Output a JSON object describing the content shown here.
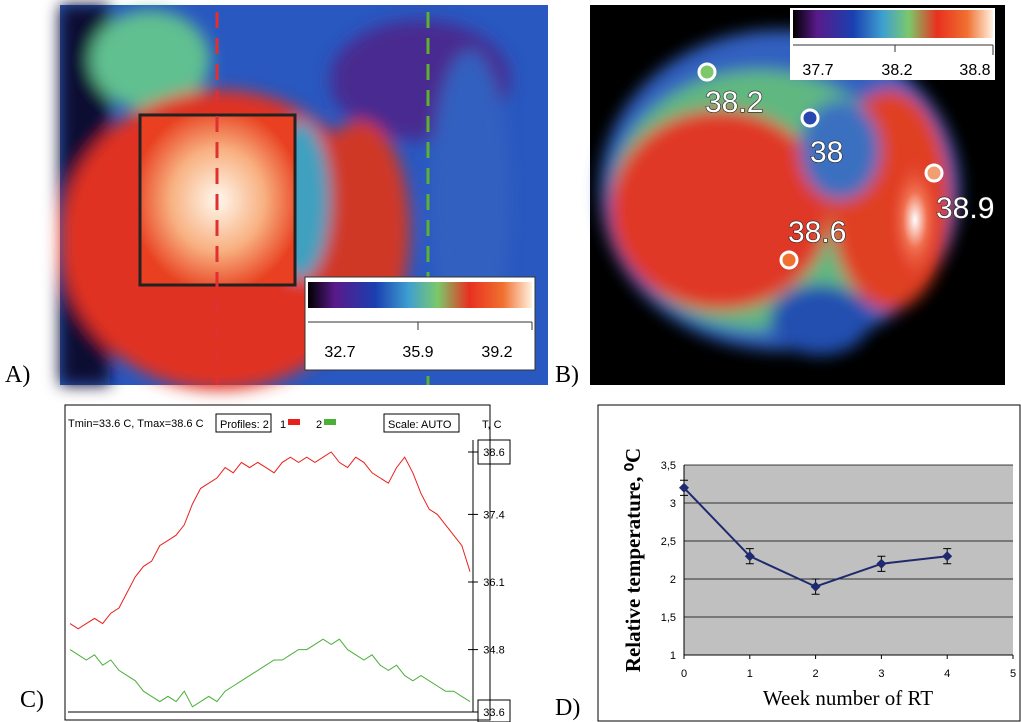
{
  "panel_labels": [
    "A)",
    "B)",
    "C)",
    "D)"
  ],
  "image_a": {
    "scale_labels": [
      "32.7",
      "35.9",
      "39.2"
    ]
  },
  "image_b": {
    "scale_labels": [
      "37.7",
      "38.2",
      "38.8"
    ],
    "point_labels": [
      "38.2",
      "38",
      "38.6",
      "38.9"
    ]
  },
  "chart_data": [
    {
      "type": "line",
      "title": "Tmin=33.6 C,  Tmax=38.6 C",
      "profiles_label": "Profiles: 2",
      "scale_label": "Scale: AUTO",
      "y_label": "T, C",
      "ylim": [
        33.6,
        38.6
      ],
      "yticks": [
        38.6,
        37.4,
        36.1,
        34.8,
        33.6
      ],
      "grid": false,
      "series": [
        {
          "name": "1",
          "color": "#e8201c",
          "values": [
            35.3,
            35.2,
            35.3,
            35.4,
            35.3,
            35.5,
            35.6,
            35.9,
            36.2,
            36.4,
            36.5,
            36.8,
            36.9,
            37.0,
            37.2,
            37.6,
            37.9,
            38.0,
            38.1,
            38.3,
            38.2,
            38.4,
            38.3,
            38.4,
            38.3,
            38.2,
            38.4,
            38.5,
            38.4,
            38.5,
            38.4,
            38.5,
            38.6,
            38.4,
            38.3,
            38.5,
            38.4,
            38.2,
            38.1,
            38.0,
            38.3,
            38.5,
            38.2,
            37.8,
            37.5,
            37.4,
            37.2,
            37.0,
            36.8,
            36.3
          ]
        },
        {
          "name": "2",
          "color": "#4caf3a",
          "values": [
            34.8,
            34.7,
            34.6,
            34.7,
            34.5,
            34.6,
            34.4,
            34.3,
            34.2,
            34.0,
            33.9,
            33.8,
            33.9,
            33.8,
            34.0,
            33.7,
            33.8,
            33.9,
            33.8,
            34.0,
            34.1,
            34.2,
            34.3,
            34.4,
            34.5,
            34.6,
            34.6,
            34.7,
            34.8,
            34.8,
            34.9,
            35.0,
            34.9,
            35.0,
            34.8,
            34.7,
            34.6,
            34.7,
            34.5,
            34.4,
            34.5,
            34.3,
            34.2,
            34.3,
            34.2,
            34.1,
            34.0,
            34.0,
            33.9,
            33.8
          ]
        }
      ]
    },
    {
      "type": "line",
      "x_label": "Week number of RT",
      "y_label": "Relative temperature, ⁰C",
      "x": [
        0,
        1,
        2,
        3,
        4
      ],
      "xlim": [
        0,
        5
      ],
      "xticks": [
        0,
        1,
        2,
        3,
        4,
        5
      ],
      "ylim": [
        1,
        3.5
      ],
      "yticks": [
        1,
        {
          "value": 1.5,
          "label": "1,5"
        },
        2,
        {
          "value": 2.5,
          "label": "2,5"
        },
        3,
        {
          "value": 3.5,
          "label": "3,5"
        }
      ],
      "grid": true,
      "series": [
        {
          "color": "#1f2a6e",
          "values": [
            3.2,
            2.3,
            1.9,
            2.2,
            2.3
          ],
          "errors": [
            0.1,
            0.1,
            0.1,
            0.1,
            0.1
          ]
        }
      ]
    }
  ]
}
